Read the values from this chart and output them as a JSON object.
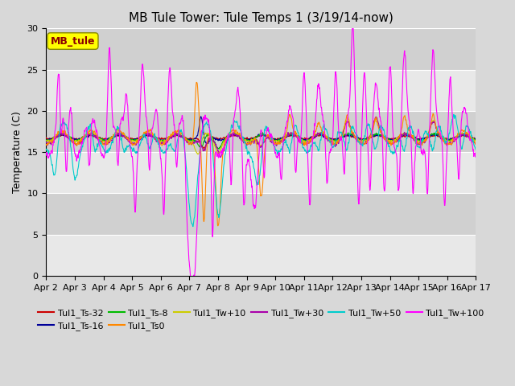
{
  "title": "MB Tule Tower: Tule Temps 1 (3/19/14-now)",
  "ylabel": "Temperature (C)",
  "ylim": [
    0,
    30
  ],
  "yticks": [
    0,
    5,
    10,
    15,
    20,
    25,
    30
  ],
  "x_tick_labels": [
    "Apr 2",
    "Apr 3",
    "Apr 4",
    "Apr 5",
    "Apr 6",
    "Apr 7",
    "Apr 8",
    "Apr 9",
    "Apr 10",
    "Apr 11",
    "Apr 12",
    "Apr 13",
    "Apr 14",
    "Apr 15",
    "Apr 16",
    "Apr 17"
  ],
  "background_color": "#d8d8d8",
  "plot_bg_color": "#d8d8d8",
  "band_colors": [
    "#e8e8e8",
    "#d0d0d0"
  ],
  "grid_color": "#ffffff",
  "legend_box_color": "#ffff00",
  "legend_box_text": "MB_tule",
  "series_colors": {
    "Tul1_Ts-32": "#cc0000",
    "Tul1_Ts-16": "#000099",
    "Tul1_Ts-8": "#00bb00",
    "Tul1_Ts0": "#ff8800",
    "Tul1_Tw+10": "#cccc00",
    "Tul1_Tw+30": "#aa00aa",
    "Tul1_Tw+50": "#00cccc",
    "Tul1_Tw+100": "#ff00ff"
  },
  "title_fontsize": 11,
  "axis_fontsize": 9,
  "tick_fontsize": 8,
  "figsize": [
    6.4,
    4.8
  ],
  "dpi": 100
}
